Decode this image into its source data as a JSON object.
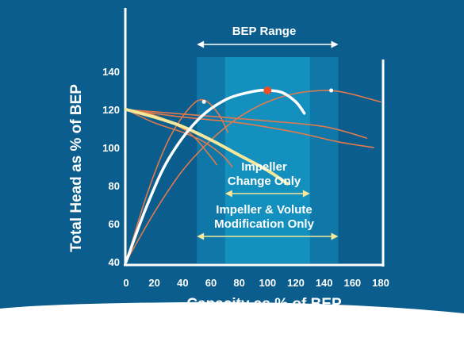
{
  "chart_data": {
    "type": "line",
    "xlabel": "Capacity as % of BEP",
    "ylabel": "Total Head as % of BEP",
    "xlim": [
      0,
      180
    ],
    "ylim": [
      40,
      145
    ],
    "x_ticks": [
      "0",
      "20",
      "40",
      "60",
      "80",
      "100",
      "120",
      "140",
      "160",
      "180"
    ],
    "y_ticks": [
      "40",
      "60",
      "80",
      "100",
      "120",
      "140"
    ],
    "bep_range": [
      50,
      150
    ],
    "inner_range": [
      70,
      130
    ],
    "annotations": {
      "bep_range": "BEP Range",
      "impeller_change_1": "Impeller",
      "impeller_change_2": "Change Only",
      "volute_1": "Impeller & Volute",
      "volute_2": "Modification Only"
    },
    "series": [
      {
        "role": "head_curve_small",
        "color": "#e07a4e",
        "points": [
          [
            0,
            40
          ],
          [
            15,
            76
          ],
          [
            30,
            104
          ],
          [
            45,
            121
          ],
          [
            55,
            125
          ],
          [
            65,
            118
          ],
          [
            72,
            108
          ]
        ]
      },
      {
        "role": "head_curve_bep",
        "color": "#ffffff",
        "points": [
          [
            0,
            40
          ],
          [
            15,
            70
          ],
          [
            30,
            94
          ],
          [
            50,
            114
          ],
          [
            70,
            125
          ],
          [
            90,
            129.5
          ],
          [
            100,
            130
          ],
          [
            110,
            129
          ],
          [
            120,
            124
          ],
          [
            126,
            118
          ]
        ]
      },
      {
        "role": "head_curve_large",
        "color": "#e07a4e",
        "points": [
          [
            0,
            40
          ],
          [
            20,
            66
          ],
          [
            40,
            88
          ],
          [
            60,
            104
          ],
          [
            80,
            116
          ],
          [
            100,
            124
          ],
          [
            120,
            128.5
          ],
          [
            140,
            130
          ],
          [
            150,
            129.5
          ],
          [
            160,
            128
          ],
          [
            170,
            126
          ],
          [
            180,
            124
          ]
        ]
      },
      {
        "role": "system_curve_1",
        "color": "#e07a4e",
        "points": [
          [
            0,
            120
          ],
          [
            20,
            117
          ],
          [
            40,
            110
          ],
          [
            50,
            104
          ],
          [
            60,
            95
          ],
          [
            64,
            91
          ]
        ]
      },
      {
        "role": "system_curve_2",
        "color": "#e07a4e",
        "points": [
          [
            0,
            120
          ],
          [
            20,
            113
          ],
          [
            40,
            108
          ],
          [
            55,
            103
          ],
          [
            68,
            96
          ],
          [
            75,
            90
          ]
        ]
      },
      {
        "role": "system_curve_3",
        "color": "#e07a4e",
        "points": [
          [
            0,
            120
          ],
          [
            40,
            116
          ],
          [
            80,
            113
          ],
          [
            120,
            108
          ],
          [
            150,
            103
          ],
          [
            175,
            100
          ]
        ]
      },
      {
        "role": "system_curve_4",
        "color": "#e07a4e",
        "points": [
          [
            0,
            120
          ],
          [
            50,
            117
          ],
          [
            100,
            114
          ],
          [
            140,
            111
          ],
          [
            170,
            105
          ]
        ]
      },
      {
        "role": "reference_curve",
        "color": "#f5e89a",
        "points": [
          [
            0,
            120
          ],
          [
            20,
            116
          ],
          [
            40,
            111
          ],
          [
            60,
            104
          ],
          [
            80,
            96
          ],
          [
            100,
            88
          ],
          [
            114,
            81
          ]
        ]
      }
    ],
    "markers": [
      {
        "role": "bep_point",
        "x": 100,
        "y": 130,
        "color": "#e8502a"
      },
      {
        "role": "point",
        "x": 55,
        "y": 124,
        "color": "#ffffff"
      },
      {
        "role": "point",
        "x": 145,
        "y": 130,
        "color": "#ffffff"
      }
    ],
    "colors": {
      "background": "#0a5d8c",
      "band": "#1490be",
      "band_edge": "#0f78a8",
      "white": "#ffffff",
      "yellow": "#f5e89a",
      "orange": "#e07a4e",
      "bep_dot": "#e8502a"
    }
  }
}
